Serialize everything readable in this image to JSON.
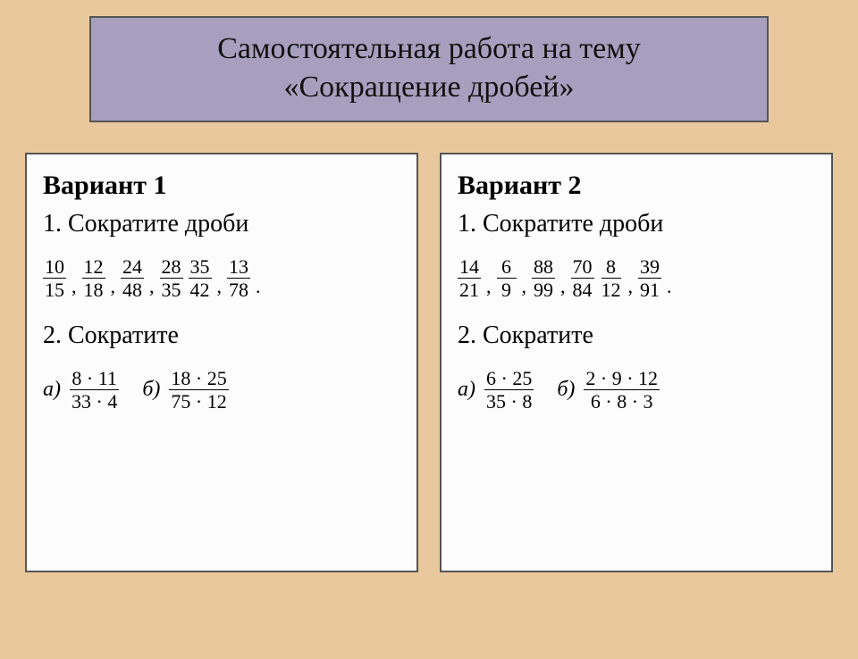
{
  "colors": {
    "page_bg": "#eac89e",
    "title_bg": "#a89fbf",
    "card_bg": "#fcfcfc",
    "border": "#555555",
    "text": "#000000"
  },
  "typography": {
    "title_fontsize_pt": 26,
    "card_title_fontsize_pt": 22,
    "body_fontsize_pt": 20,
    "font_family": "Times New Roman"
  },
  "title": {
    "line1": "Самостоятельная работа на тему",
    "line2": "«Сокращение дробей»"
  },
  "variants": [
    {
      "heading": "Вариант 1",
      "task1_label": "1. Сократите  дроби",
      "task1_fractions": [
        {
          "num": "10",
          "den": "15"
        },
        {
          "num": "12",
          "den": "18"
        },
        {
          "num": "24",
          "den": "48"
        },
        {
          "num": "28",
          "den": "35"
        },
        {
          "num": "35",
          "den": "42"
        },
        {
          "num": "13",
          "den": "78"
        }
      ],
      "task1_sep_after": [
        0,
        1,
        2,
        4
      ],
      "task1_pair_nosep": [
        3
      ],
      "task2_label": "2. Сократите",
      "task2_items": [
        {
          "letter": "а)",
          "num": "8 · 11",
          "den": "33 · 4"
        },
        {
          "letter": "б)",
          "num": "18 · 25",
          "den": "75 · 12"
        }
      ]
    },
    {
      "heading": "Вариант 2",
      "task1_label": "1.  Сократите  дроби",
      "task1_fractions": [
        {
          "num": "14",
          "den": "21"
        },
        {
          "num": "6",
          "den": "9"
        },
        {
          "num": "88",
          "den": "99"
        },
        {
          "num": "70",
          "den": "84"
        },
        {
          "num": "8",
          "den": "12"
        },
        {
          "num": "39",
          "den": "91"
        }
      ],
      "task1_sep_after": [
        0,
        1,
        2,
        4
      ],
      "task1_pair_nosep": [
        3
      ],
      "task2_label": "2. Сократите",
      "task2_items": [
        {
          "letter": "а)",
          "num": "6 · 25",
          "den": "35 · 8"
        },
        {
          "letter": "б)",
          "num": "2 · 9 · 12",
          "den": "6 · 8 · 3"
        }
      ]
    }
  ]
}
